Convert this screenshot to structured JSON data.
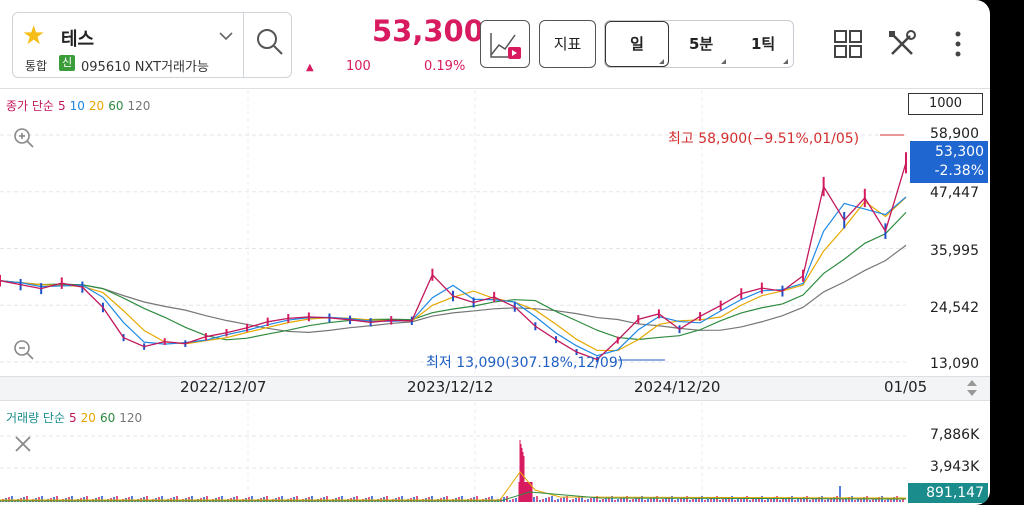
{
  "header": {
    "stock_name": "테스",
    "market": "통합",
    "credit_badge": "신",
    "code_line": "095610 NXT거래가능",
    "price": "53,300",
    "change": "100",
    "change_rate": "0.19%",
    "indicator_label": "지표",
    "periods": [
      "일",
      "5분",
      "1틱"
    ],
    "selected_period": "일",
    "icons": [
      "star-icon",
      "chevron-down-icon",
      "search-icon",
      "chart-play-icon",
      "grid-icon",
      "tools-icon",
      "more-vertical-icon"
    ]
  },
  "price_chart": {
    "ma_label_prefix": "종가 단순",
    "ma_periods": [
      "5",
      "10",
      "20",
      "60",
      "120"
    ],
    "zoom_count": "1000",
    "y_ticks": [
      "58,900",
      "47,447",
      "35,995",
      "24,542",
      "13,090"
    ],
    "current_price": "53,300",
    "current_rate": "-2.38%",
    "high_label": "최고 58,900(−9.51%,01/05)",
    "low_label": "최저 13,090(307.18%,12/09)",
    "x_ticks": [
      "2022/12/07",
      "2023/12/12",
      "2024/12/20",
      "01/05"
    ]
  },
  "volume_chart": {
    "label_prefix": "거래량 단순",
    "ma_periods": [
      "5",
      "20",
      "60",
      "120"
    ],
    "y_ticks": [
      "7,886K",
      "3,943K"
    ],
    "current_volume": "891,147"
  },
  "colors": {
    "up": "#d81b60",
    "ma5": "#c2185b",
    "ma10": "#1e88e5",
    "ma20": "#e6a800",
    "ma60": "#2e8b3e",
    "ma120": "#777777",
    "current_box": "#1f66d1",
    "volume_box": "#1a8c8c"
  },
  "chart_data": {
    "type": "line",
    "title": "",
    "y_range": [
      13090,
      58900
    ],
    "high": 58900,
    "low": 13090,
    "current": 53300,
    "x_labels": [
      "2022/12/07",
      "2023/12/12",
      "2024/12/20",
      "01/05"
    ],
    "series": [
      {
        "name": "종가",
        "values": [
          29500,
          28700,
          27900,
          29000,
          28200,
          24100,
          18000,
          16200,
          17200,
          16800,
          18200,
          19000,
          20000,
          21200,
          21900,
          22200,
          22000,
          21600,
          21100,
          21500,
          21400,
          30700,
          26400,
          25100,
          26200,
          24200,
          20300,
          17600,
          15100,
          13600,
          17500,
          21700,
          22800,
          19700,
          22300,
          24500,
          26900,
          28000,
          27400,
          30500,
          48500,
          41700,
          46200,
          39500,
          53300
        ]
      }
    ]
  }
}
